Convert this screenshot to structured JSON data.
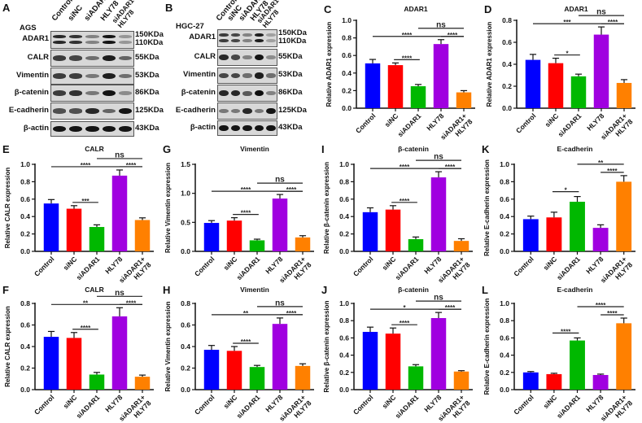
{
  "groups": [
    "Control",
    "siNC",
    "siADAR1",
    "HLY78",
    "siADAR1+ HLY78"
  ],
  "group_colors": [
    "#0000ff",
    "#ff0000",
    "#00b800",
    "#a000e0",
    "#ff8000"
  ],
  "blots": [
    {
      "letter": "A",
      "cell_line": "AGS",
      "lanes": [
        "Control",
        "siNC",
        "siADAR1",
        "HLY78",
        "siADAR1+ HLY78"
      ],
      "rows": [
        {
          "protein": "ADAR1",
          "kda": [
            "150KDa",
            "110KDa"
          ],
          "intensity": [
            0.85,
            0.8,
            0.4,
            0.95,
            0.3
          ]
        },
        {
          "protein": "CALR",
          "kda": [
            "55KDa"
          ],
          "intensity": [
            0.75,
            0.7,
            0.5,
            0.9,
            0.55
          ]
        },
        {
          "protein": "Vimentin",
          "kda": [
            "53KDa"
          ],
          "intensity": [
            0.75,
            0.75,
            0.45,
            0.9,
            0.5
          ]
        },
        {
          "protein": "β-catenin",
          "kda": [
            "86KDa"
          ],
          "intensity": [
            0.75,
            0.8,
            0.45,
            0.95,
            0.35
          ]
        },
        {
          "protein": "E-cadherin",
          "kda": [
            "125KDa"
          ],
          "intensity": [
            0.65,
            0.65,
            0.85,
            0.55,
            0.95
          ]
        },
        {
          "protein": "β-actin",
          "kda": [
            "43KDa"
          ],
          "intensity": [
            0.95,
            0.95,
            0.95,
            0.95,
            0.95
          ]
        }
      ]
    },
    {
      "letter": "B",
      "cell_line": "HGC-27",
      "lanes": [
        "Control",
        "siNC",
        "siADAR1",
        "HLY78",
        "siADAR1+ HLY78"
      ],
      "rows": [
        {
          "protein": "ADAR1",
          "kda": [
            "150KDa",
            "110KDa"
          ],
          "intensity": [
            0.75,
            0.7,
            0.4,
            0.9,
            0.25
          ]
        },
        {
          "protein": "CALR",
          "kda": [
            "55KDa"
          ],
          "intensity": [
            0.85,
            0.7,
            0.4,
            0.95,
            0.35
          ]
        },
        {
          "protein": "Vimentin",
          "kda": [
            "53KDa"
          ],
          "intensity": [
            0.7,
            0.7,
            0.5,
            0.9,
            0.5
          ]
        },
        {
          "protein": "β-catenin",
          "kda": [
            "86KDa"
          ],
          "intensity": [
            0.85,
            0.85,
            0.6,
            0.98,
            0.4
          ]
        },
        {
          "protein": "E-cadherin",
          "kda": [
            "125KDa"
          ],
          "intensity": [
            0.45,
            0.45,
            0.85,
            0.45,
            0.95
          ]
        },
        {
          "protein": "β-actin",
          "kda": [
            "43KDa"
          ],
          "intensity": [
            0.95,
            0.95,
            0.95,
            0.95,
            0.95
          ]
        }
      ]
    }
  ],
  "chart_data": [
    {
      "letter": "C",
      "type": "bar",
      "title": "ADAR1",
      "ylabel": "Relative ADAR1 expression",
      "xlabel": "",
      "categories": [
        "Control",
        "siNC",
        "siADAR1",
        "HLY78",
        "siADAR1+ HLY78"
      ],
      "values": [
        0.51,
        0.49,
        0.25,
        0.73,
        0.18
      ],
      "errors": [
        0.045,
        0.025,
        0.02,
        0.05,
        0.02
      ],
      "ylim": [
        0,
        1.0
      ],
      "yticks": [
        "0.0",
        "0.2",
        "0.4",
        "0.6",
        "0.8",
        "1.0"
      ],
      "ytick_values": [
        0,
        0.2,
        0.4,
        0.6,
        0.8,
        1.0
      ],
      "significance": [
        {
          "from": 0,
          "to": 4,
          "label": "****",
          "level": 0,
          "label_at": 1.5
        },
        {
          "from": 2,
          "to": 4,
          "label": "ns",
          "level": 1,
          "label_at": 3
        },
        {
          "from": 1,
          "to": 2,
          "label": "****",
          "level": -1
        },
        {
          "from": 3,
          "to": 4,
          "label": "****",
          "level": 0
        }
      ]
    },
    {
      "letter": "D",
      "type": "bar",
      "title": "ADAR1",
      "ylabel": "Relative ADAR1 expression",
      "xlabel": "",
      "categories": [
        "Control",
        "siNC",
        "siADAR1",
        "HLY78",
        "siADAR1+ HLY78"
      ],
      "values": [
        0.44,
        0.41,
        0.29,
        0.67,
        0.23
      ],
      "errors": [
        0.05,
        0.045,
        0.02,
        0.07,
        0.03
      ],
      "ylim": [
        0,
        0.8
      ],
      "yticks": [
        "0.0",
        "0.2",
        "0.4",
        "0.6",
        "0.8"
      ],
      "ytick_values": [
        0,
        0.2,
        0.4,
        0.6,
        0.8
      ],
      "significance": [
        {
          "from": 0,
          "to": 4,
          "label": "***",
          "level": 0,
          "label_at": 1.5
        },
        {
          "from": 2,
          "to": 4,
          "label": "ns",
          "level": 1,
          "label_at": 3
        },
        {
          "from": 1,
          "to": 2,
          "label": "*",
          "level": -1
        },
        {
          "from": 3,
          "to": 4,
          "label": "****",
          "level": 0
        }
      ]
    },
    {
      "letter": "E",
      "type": "bar",
      "title": "CALR",
      "ylabel": "Relative CALR expression",
      "xlabel": "",
      "categories": [
        "Control",
        "siNC",
        "siADAR1",
        "HLY78",
        "siADAR1+ HLY78"
      ],
      "values": [
        0.55,
        0.49,
        0.28,
        0.87,
        0.36
      ],
      "errors": [
        0.045,
        0.035,
        0.025,
        0.065,
        0.025
      ],
      "ylim": [
        0,
        1.0
      ],
      "yticks": [
        "0.0",
        "0.2",
        "0.4",
        "0.6",
        "0.8",
        "1.0"
      ],
      "ytick_values": [
        0,
        0.2,
        0.4,
        0.6,
        0.8,
        1.0
      ],
      "significance": [
        {
          "from": 0,
          "to": 4,
          "label": "****",
          "level": 0,
          "label_at": 1.5
        },
        {
          "from": 2,
          "to": 4,
          "label": "ns",
          "level": 1,
          "label_at": 3
        },
        {
          "from": 1,
          "to": 2,
          "label": "***",
          "level": -1
        },
        {
          "from": 3,
          "to": 4,
          "label": "****",
          "level": 0
        }
      ]
    },
    {
      "letter": "G",
      "type": "bar",
      "title": "Vimentin",
      "ylabel": "Relative Vimentin expression",
      "xlabel": "",
      "categories": [
        "Control",
        "siNC",
        "siADAR1",
        "HLY78",
        "siADAR1+ HLY78"
      ],
      "values": [
        0.49,
        0.53,
        0.19,
        0.91,
        0.24
      ],
      "errors": [
        0.04,
        0.05,
        0.02,
        0.07,
        0.03
      ],
      "ylim": [
        0,
        1.5
      ],
      "yticks": [
        "0.0",
        "0.5",
        "1.0",
        "1.5"
      ],
      "ytick_values": [
        0,
        0.5,
        1.0,
        1.5
      ],
      "significance": [
        {
          "from": 0,
          "to": 4,
          "label": "****",
          "level": 0,
          "label_at": 1.5
        },
        {
          "from": 2,
          "to": 4,
          "label": "ns",
          "level": 1,
          "label_at": 3
        },
        {
          "from": 1,
          "to": 2,
          "label": "****",
          "level": -1
        },
        {
          "from": 3,
          "to": 4,
          "label": "****",
          "level": 0
        }
      ]
    },
    {
      "letter": "I",
      "type": "bar",
      "title": "β-catenin",
      "ylabel": "Relative β-catenin expression",
      "xlabel": "",
      "categories": [
        "Control",
        "siNC",
        "siADAR1",
        "HLY78",
        "siADAR1+ HLY78"
      ],
      "values": [
        0.45,
        0.48,
        0.14,
        0.85,
        0.12
      ],
      "errors": [
        0.05,
        0.045,
        0.025,
        0.065,
        0.025
      ],
      "ylim": [
        0,
        1.0
      ],
      "yticks": [
        "0.0",
        "0.2",
        "0.4",
        "0.6",
        "0.8",
        "1.0"
      ],
      "ytick_values": [
        0,
        0.2,
        0.4,
        0.6,
        0.8,
        1.0
      ],
      "significance": [
        {
          "from": 0,
          "to": 4,
          "label": "****",
          "level": 0,
          "label_at": 1.5
        },
        {
          "from": 2,
          "to": 4,
          "label": "ns",
          "level": 1,
          "label_at": 3
        },
        {
          "from": 1,
          "to": 2,
          "label": "****",
          "level": -1
        },
        {
          "from": 3,
          "to": 4,
          "label": "****",
          "level": 0
        }
      ]
    },
    {
      "letter": "K",
      "type": "bar",
      "title": "E-cadherin",
      "ylabel": "Relative E-cadherin expression",
      "xlabel": "",
      "categories": [
        "Control",
        "siNC",
        "siADAR1",
        "HLY78",
        "siADAR1+ HLY78"
      ],
      "values": [
        0.37,
        0.39,
        0.57,
        0.27,
        0.8
      ],
      "errors": [
        0.035,
        0.06,
        0.06,
        0.035,
        0.07
      ],
      "ylim": [
        0,
        1.0
      ],
      "yticks": [
        "0.0",
        "0.2",
        "0.4",
        "0.6",
        "0.8",
        "1.0"
      ],
      "ytick_values": [
        0,
        0.2,
        0.4,
        0.6,
        0.8,
        1.0
      ],
      "significance": [
        {
          "from": 2,
          "to": 4,
          "label": "**",
          "level": 1
        },
        {
          "from": 1,
          "to": 2,
          "label": "*",
          "level": -1
        },
        {
          "from": 3,
          "to": 4,
          "label": "****",
          "level": 0
        }
      ]
    },
    {
      "letter": "F",
      "type": "bar",
      "title": "CALR",
      "ylabel": "Relative CALR expression",
      "xlabel": "",
      "categories": [
        "Control",
        "siNC",
        "siADAR1",
        "HLY78",
        "siADAR1+ HLY78"
      ],
      "values": [
        0.49,
        0.48,
        0.14,
        0.68,
        0.12
      ],
      "errors": [
        0.05,
        0.05,
        0.02,
        0.08,
        0.015
      ],
      "ylim": [
        0,
        0.8
      ],
      "yticks": [
        "0.0",
        "0.2",
        "0.4",
        "0.6",
        "0.8"
      ],
      "ytick_values": [
        0,
        0.2,
        0.4,
        0.6,
        0.8
      ],
      "significance": [
        {
          "from": 0,
          "to": 4,
          "label": "**",
          "level": 0,
          "label_at": 1.5
        },
        {
          "from": 2,
          "to": 4,
          "label": "ns",
          "level": 1,
          "label_at": 3
        },
        {
          "from": 1,
          "to": 2,
          "label": "****",
          "level": -1
        },
        {
          "from": 3,
          "to": 4,
          "label": "****",
          "level": 0
        }
      ]
    },
    {
      "letter": "H",
      "type": "bar",
      "title": "Vimentin",
      "ylabel": "Relative Vimentin expression",
      "xlabel": "",
      "categories": [
        "Control",
        "siNC",
        "siADAR1",
        "HLY78",
        "siADAR1+ HLY78"
      ],
      "values": [
        0.37,
        0.36,
        0.21,
        0.61,
        0.22
      ],
      "errors": [
        0.04,
        0.04,
        0.015,
        0.055,
        0.02
      ],
      "ylim": [
        0,
        0.8
      ],
      "yticks": [
        "0.0",
        "0.2",
        "0.4",
        "0.6",
        "0.8"
      ],
      "ytick_values": [
        0,
        0.2,
        0.4,
        0.6,
        0.8
      ],
      "significance": [
        {
          "from": 0,
          "to": 4,
          "label": "**",
          "level": 0,
          "label_at": 1.5
        },
        {
          "from": 2,
          "to": 4,
          "label": "ns",
          "level": 1,
          "label_at": 3
        },
        {
          "from": 1,
          "to": 2,
          "label": "****",
          "level": -1
        },
        {
          "from": 3,
          "to": 4,
          "label": "****",
          "level": 0
        }
      ]
    },
    {
      "letter": "J",
      "type": "bar",
      "title": "β-catenin",
      "ylabel": "Relative β-catenin expression",
      "xlabel": "",
      "categories": [
        "Control",
        "siNC",
        "siADAR1",
        "HLY78",
        "siADAR1+ HLY78"
      ],
      "values": [
        0.67,
        0.65,
        0.27,
        0.83,
        0.21
      ],
      "errors": [
        0.055,
        0.065,
        0.02,
        0.065,
        0.01
      ],
      "ylim": [
        0,
        1.0
      ],
      "yticks": [
        "0.0",
        "0.2",
        "0.4",
        "0.6",
        "0.8",
        "1.0"
      ],
      "ytick_values": [
        0,
        0.2,
        0.4,
        0.6,
        0.8,
        1.0
      ],
      "significance": [
        {
          "from": 0,
          "to": 4,
          "label": "*",
          "level": 0,
          "label_at": 1.5
        },
        {
          "from": 2,
          "to": 4,
          "label": "ns",
          "level": 1,
          "label_at": 3
        },
        {
          "from": 1,
          "to": 2,
          "label": "****",
          "level": -1
        },
        {
          "from": 3,
          "to": 4,
          "label": "****",
          "level": 0
        }
      ]
    },
    {
      "letter": "L",
      "type": "bar",
      "title": "E-cadherin",
      "ylabel": "Relative E-cadherin expression",
      "xlabel": "",
      "categories": [
        "Control",
        "siNC",
        "siADAR1",
        "HLY78",
        "siADAR1+ HLY78"
      ],
      "values": [
        0.2,
        0.18,
        0.57,
        0.17,
        0.77
      ],
      "errors": [
        0.01,
        0.01,
        0.03,
        0.01,
        0.06
      ],
      "ylim": [
        0,
        1.0
      ],
      "yticks": [
        "0.0",
        "0.2",
        "0.4",
        "0.6",
        "0.8",
        "1.0"
      ],
      "ytick_values": [
        0,
        0.2,
        0.4,
        0.6,
        0.8,
        1.0
      ],
      "significance": [
        {
          "from": 2,
          "to": 4,
          "label": "****",
          "level": 1
        },
        {
          "from": 1,
          "to": 2,
          "label": "****",
          "level": -1
        },
        {
          "from": 3,
          "to": 4,
          "label": "****",
          "level": 0
        }
      ]
    }
  ]
}
